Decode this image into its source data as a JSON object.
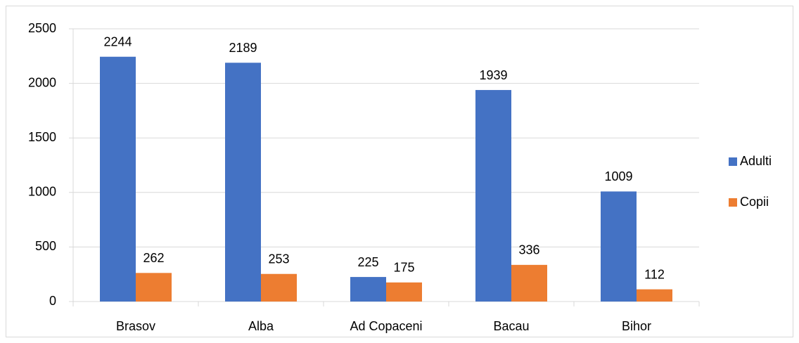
{
  "chart_data": {
    "type": "bar",
    "categories": [
      "Brasov",
      "Alba",
      "Ad Copaceni",
      "Bacau",
      "Bihor"
    ],
    "series": [
      {
        "name": "Adulti",
        "color": "#4472c4",
        "values": [
          2244,
          2189,
          225,
          1939,
          1009
        ]
      },
      {
        "name": "Copii",
        "color": "#ed7d31",
        "values": [
          262,
          253,
          175,
          336,
          112
        ]
      }
    ],
    "ylim": [
      0,
      2500
    ],
    "yticks": [
      0,
      500,
      1000,
      1500,
      2000,
      2500
    ],
    "grid": true,
    "legend": "right"
  }
}
